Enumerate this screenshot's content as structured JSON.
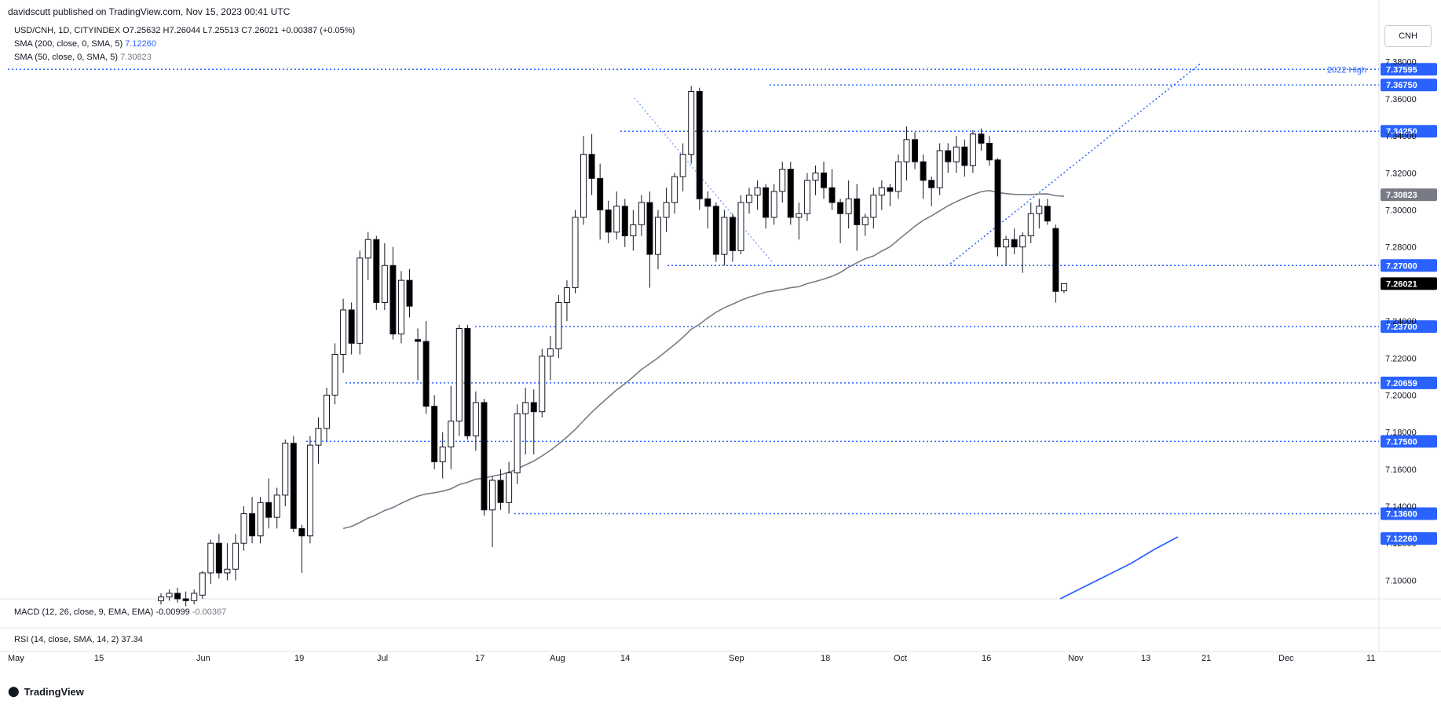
{
  "header": {
    "publisher": "davidscutt published on TradingView.com, Nov 15, 2023 00:41 UTC"
  },
  "legend": {
    "symbol_line": "USD/CNH, 1D, CITYINDEX  O7.25632  H7.26044  L7.25513  C7.26021  +0.00387 (+0.05%)",
    "sma200_label": "SMA (200, close, 0, SMA, 5)",
    "sma200_value": "7.12260",
    "sma50_label": "SMA (50, close, 0, SMA, 5)",
    "sma50_value": "7.30823"
  },
  "currency_button": "CNH",
  "macd_pane": {
    "label": "MACD (12, 26, close, 9, EMA, EMA)",
    "value1": "-0.00999",
    "value2": "-0.00367"
  },
  "rsi_pane": {
    "label": "RSI (14, close, SMA, 14, 2)",
    "value": "37.34"
  },
  "brand": "TradingView",
  "colors": {
    "up": "#ffffff",
    "down": "#000000",
    "level_line": "#2962ff",
    "sma50": "#787b86",
    "sma200": "#2962ff",
    "label_bg": "#2962ff",
    "current_bg": "#000000"
  },
  "chart_data": {
    "type": "candlestick",
    "y_range": [
      7.09,
      7.382
    ],
    "y_ticks": [
      "7.38000",
      "7.36000",
      "7.34000",
      "7.32000",
      "7.30000",
      "7.28000",
      "7.26000",
      "7.24000",
      "7.22000",
      "7.20000",
      "7.18000",
      "7.16000",
      "7.14000",
      "7.12000",
      "7.10000"
    ],
    "x_labels": [
      "May",
      "15",
      "Jun",
      "19",
      "Jul",
      "17",
      "Aug",
      "14",
      "Sep",
      "18",
      "Oct",
      "16",
      "Nov",
      "13",
      "21",
      "Dec",
      "11"
    ],
    "levels": [
      {
        "label": "7.37595",
        "value": 7.37595,
        "note": "2022 High"
      },
      {
        "label": "7.36750",
        "value": 7.3675
      },
      {
        "label": "7.34250",
        "value": 7.3425
      },
      {
        "label": "7.27000",
        "value": 7.27
      },
      {
        "label": "7.23700",
        "value": 7.237
      },
      {
        "label": "7.20659",
        "value": 7.20659
      },
      {
        "label": "7.17500",
        "value": 7.175
      },
      {
        "label": "7.13600",
        "value": 7.136
      }
    ],
    "price_labels": [
      {
        "label": "7.30823",
        "value": 7.30823,
        "kind": "sma50"
      },
      {
        "label": "7.26021",
        "value": 7.26021,
        "kind": "current"
      },
      {
        "label": "7.12260",
        "value": 7.1226,
        "kind": "sma200"
      }
    ],
    "candles": [
      {
        "o": 7.089,
        "h": 7.093,
        "l": 7.087,
        "c": 7.091
      },
      {
        "o": 7.091,
        "h": 7.095,
        "l": 7.089,
        "c": 7.093
      },
      {
        "o": 7.093,
        "h": 7.096,
        "l": 7.088,
        "c": 7.09
      },
      {
        "o": 7.09,
        "h": 7.094,
        "l": 7.086,
        "c": 7.089
      },
      {
        "o": 7.089,
        "h": 7.095,
        "l": 7.087,
        "c": 7.093
      },
      {
        "o": 7.092,
        "h": 7.105,
        "l": 7.09,
        "c": 7.104
      },
      {
        "o": 7.104,
        "h": 7.122,
        "l": 7.098,
        "c": 7.12
      },
      {
        "o": 7.12,
        "h": 7.125,
        "l": 7.101,
        "c": 7.104
      },
      {
        "o": 7.104,
        "h": 7.12,
        "l": 7.1,
        "c": 7.106
      },
      {
        "o": 7.106,
        "h": 7.125,
        "l": 7.1,
        "c": 7.12
      },
      {
        "o": 7.12,
        "h": 7.14,
        "l": 7.116,
        "c": 7.136
      },
      {
        "o": 7.136,
        "h": 7.145,
        "l": 7.12,
        "c": 7.124
      },
      {
        "o": 7.124,
        "h": 7.145,
        "l": 7.12,
        "c": 7.142
      },
      {
        "o": 7.142,
        "h": 7.155,
        "l": 7.128,
        "c": 7.134
      },
      {
        "o": 7.134,
        "h": 7.15,
        "l": 7.128,
        "c": 7.146
      },
      {
        "o": 7.146,
        "h": 7.176,
        "l": 7.14,
        "c": 7.174
      },
      {
        "o": 7.174,
        "h": 7.178,
        "l": 7.126,
        "c": 7.128
      },
      {
        "o": 7.128,
        "h": 7.13,
        "l": 7.104,
        "c": 7.124
      },
      {
        "o": 7.124,
        "h": 7.178,
        "l": 7.12,
        "c": 7.173
      },
      {
        "o": 7.173,
        "h": 7.188,
        "l": 7.163,
        "c": 7.182
      },
      {
        "o": 7.182,
        "h": 7.204,
        "l": 7.175,
        "c": 7.2
      },
      {
        "o": 7.2,
        "h": 7.228,
        "l": 7.195,
        "c": 7.222
      },
      {
        "o": 7.222,
        "h": 7.252,
        "l": 7.212,
        "c": 7.246
      },
      {
        "o": 7.246,
        "h": 7.25,
        "l": 7.222,
        "c": 7.228
      },
      {
        "o": 7.228,
        "h": 7.278,
        "l": 7.222,
        "c": 7.274
      },
      {
        "o": 7.274,
        "h": 7.288,
        "l": 7.262,
        "c": 7.284
      },
      {
        "o": 7.284,
        "h": 7.286,
        "l": 7.246,
        "c": 7.25
      },
      {
        "o": 7.25,
        "h": 7.282,
        "l": 7.246,
        "c": 7.27
      },
      {
        "o": 7.27,
        "h": 7.28,
        "l": 7.23,
        "c": 7.233
      },
      {
        "o": 7.233,
        "h": 7.267,
        "l": 7.228,
        "c": 7.262
      },
      {
        "o": 7.262,
        "h": 7.268,
        "l": 7.242,
        "c": 7.248
      },
      {
        "o": 7.23,
        "h": 7.236,
        "l": 7.208,
        "c": 7.229
      },
      {
        "o": 7.229,
        "h": 7.24,
        "l": 7.19,
        "c": 7.194
      },
      {
        "o": 7.194,
        "h": 7.2,
        "l": 7.16,
        "c": 7.164
      },
      {
        "o": 7.164,
        "h": 7.18,
        "l": 7.155,
        "c": 7.172
      },
      {
        "o": 7.172,
        "h": 7.205,
        "l": 7.16,
        "c": 7.186
      },
      {
        "o": 7.186,
        "h": 7.238,
        "l": 7.178,
        "c": 7.236
      },
      {
        "o": 7.236,
        "h": 7.238,
        "l": 7.176,
        "c": 7.178
      },
      {
        "o": 7.178,
        "h": 7.202,
        "l": 7.17,
        "c": 7.196
      },
      {
        "o": 7.196,
        "h": 7.198,
        "l": 7.135,
        "c": 7.138
      },
      {
        "o": 7.138,
        "h": 7.156,
        "l": 7.118,
        "c": 7.154
      },
      {
        "o": 7.154,
        "h": 7.16,
        "l": 7.138,
        "c": 7.142
      },
      {
        "o": 7.142,
        "h": 7.164,
        "l": 7.136,
        "c": 7.158
      },
      {
        "o": 7.158,
        "h": 7.195,
        "l": 7.152,
        "c": 7.19
      },
      {
        "o": 7.19,
        "h": 7.204,
        "l": 7.168,
        "c": 7.196
      },
      {
        "o": 7.196,
        "h": 7.203,
        "l": 7.168,
        "c": 7.191
      },
      {
        "o": 7.191,
        "h": 7.225,
        "l": 7.188,
        "c": 7.221
      },
      {
        "o": 7.221,
        "h": 7.232,
        "l": 7.208,
        "c": 7.225
      },
      {
        "o": 7.225,
        "h": 7.254,
        "l": 7.22,
        "c": 7.25
      },
      {
        "o": 7.25,
        "h": 7.262,
        "l": 7.24,
        "c": 7.258
      },
      {
        "o": 7.258,
        "h": 7.3,
        "l": 7.255,
        "c": 7.296
      },
      {
        "o": 7.296,
        "h": 7.34,
        "l": 7.292,
        "c": 7.33
      },
      {
        "o": 7.33,
        "h": 7.341,
        "l": 7.308,
        "c": 7.317
      },
      {
        "o": 7.317,
        "h": 7.325,
        "l": 7.284,
        "c": 7.3
      },
      {
        "o": 7.3,
        "h": 7.305,
        "l": 7.282,
        "c": 7.288
      },
      {
        "o": 7.288,
        "h": 7.31,
        "l": 7.284,
        "c": 7.302
      },
      {
        "o": 7.302,
        "h": 7.306,
        "l": 7.28,
        "c": 7.286
      },
      {
        "o": 7.286,
        "h": 7.3,
        "l": 7.278,
        "c": 7.292
      },
      {
        "o": 7.292,
        "h": 7.308,
        "l": 7.286,
        "c": 7.304
      },
      {
        "o": 7.304,
        "h": 7.31,
        "l": 7.258,
        "c": 7.276
      },
      {
        "o": 7.276,
        "h": 7.3,
        "l": 7.268,
        "c": 7.296
      },
      {
        "o": 7.296,
        "h": 7.312,
        "l": 7.288,
        "c": 7.304
      },
      {
        "o": 7.304,
        "h": 7.32,
        "l": 7.298,
        "c": 7.318
      },
      {
        "o": 7.318,
        "h": 7.336,
        "l": 7.31,
        "c": 7.33
      },
      {
        "o": 7.33,
        "h": 7.367,
        "l": 7.325,
        "c": 7.364
      },
      {
        "o": 7.364,
        "h": 7.366,
        "l": 7.3,
        "c": 7.306
      },
      {
        "o": 7.306,
        "h": 7.31,
        "l": 7.29,
        "c": 7.302
      },
      {
        "o": 7.302,
        "h": 7.304,
        "l": 7.272,
        "c": 7.276
      },
      {
        "o": 7.276,
        "h": 7.3,
        "l": 7.27,
        "c": 7.296
      },
      {
        "o": 7.296,
        "h": 7.298,
        "l": 7.272,
        "c": 7.278
      },
      {
        "o": 7.278,
        "h": 7.308,
        "l": 7.276,
        "c": 7.304
      },
      {
        "o": 7.304,
        "h": 7.312,
        "l": 7.298,
        "c": 7.308
      },
      {
        "o": 7.308,
        "h": 7.316,
        "l": 7.3,
        "c": 7.312
      },
      {
        "o": 7.312,
        "h": 7.314,
        "l": 7.29,
        "c": 7.296
      },
      {
        "o": 7.296,
        "h": 7.314,
        "l": 7.292,
        "c": 7.31
      },
      {
        "o": 7.31,
        "h": 7.326,
        "l": 7.304,
        "c": 7.322
      },
      {
        "o": 7.322,
        "h": 7.326,
        "l": 7.292,
        "c": 7.296
      },
      {
        "o": 7.296,
        "h": 7.304,
        "l": 7.284,
        "c": 7.298
      },
      {
        "o": 7.298,
        "h": 7.32,
        "l": 7.294,
        "c": 7.316
      },
      {
        "o": 7.316,
        "h": 7.324,
        "l": 7.308,
        "c": 7.32
      },
      {
        "o": 7.32,
        "h": 7.326,
        "l": 7.306,
        "c": 7.312
      },
      {
        "o": 7.312,
        "h": 7.322,
        "l": 7.3,
        "c": 7.304
      },
      {
        "o": 7.304,
        "h": 7.306,
        "l": 7.282,
        "c": 7.298
      },
      {
        "o": 7.298,
        "h": 7.316,
        "l": 7.29,
        "c": 7.306
      },
      {
        "o": 7.306,
        "h": 7.314,
        "l": 7.278,
        "c": 7.292
      },
      {
        "o": 7.292,
        "h": 7.298,
        "l": 7.286,
        "c": 7.296
      },
      {
        "o": 7.296,
        "h": 7.312,
        "l": 7.29,
        "c": 7.308
      },
      {
        "o": 7.308,
        "h": 7.316,
        "l": 7.3,
        "c": 7.312
      },
      {
        "o": 7.312,
        "h": 7.314,
        "l": 7.302,
        "c": 7.31
      },
      {
        "o": 7.31,
        "h": 7.33,
        "l": 7.306,
        "c": 7.326
      },
      {
        "o": 7.326,
        "h": 7.345,
        "l": 7.316,
        "c": 7.338
      },
      {
        "o": 7.338,
        "h": 7.342,
        "l": 7.322,
        "c": 7.326
      },
      {
        "o": 7.326,
        "h": 7.33,
        "l": 7.306,
        "c": 7.316
      },
      {
        "o": 7.316,
        "h": 7.318,
        "l": 7.302,
        "c": 7.312
      },
      {
        "o": 7.312,
        "h": 7.336,
        "l": 7.308,
        "c": 7.332
      },
      {
        "o": 7.332,
        "h": 7.336,
        "l": 7.32,
        "c": 7.326
      },
      {
        "o": 7.326,
        "h": 7.34,
        "l": 7.32,
        "c": 7.334
      },
      {
        "o": 7.334,
        "h": 7.338,
        "l": 7.318,
        "c": 7.324
      },
      {
        "o": 7.324,
        "h": 7.343,
        "l": 7.32,
        "c": 7.341
      },
      {
        "o": 7.341,
        "h": 7.344,
        "l": 7.332,
        "c": 7.336
      },
      {
        "o": 7.336,
        "h": 7.34,
        "l": 7.324,
        "c": 7.327
      },
      {
        "o": 7.327,
        "h": 7.328,
        "l": 7.275,
        "c": 7.28
      },
      {
        "o": 7.28,
        "h": 7.286,
        "l": 7.27,
        "c": 7.284
      },
      {
        "o": 7.284,
        "h": 7.29,
        "l": 7.276,
        "c": 7.28
      },
      {
        "o": 7.28,
        "h": 7.288,
        "l": 7.266,
        "c": 7.286
      },
      {
        "o": 7.286,
        "h": 7.304,
        "l": 7.282,
        "c": 7.298
      },
      {
        "o": 7.298,
        "h": 7.306,
        "l": 7.29,
        "c": 7.302
      },
      {
        "o": 7.302,
        "h": 7.306,
        "l": 7.292,
        "c": 7.294
      },
      {
        "o": 7.29,
        "h": 7.292,
        "l": 7.25,
        "c": 7.256
      },
      {
        "o": 7.25632,
        "h": 7.26044,
        "l": 7.25513,
        "c": 7.26021
      }
    ]
  }
}
